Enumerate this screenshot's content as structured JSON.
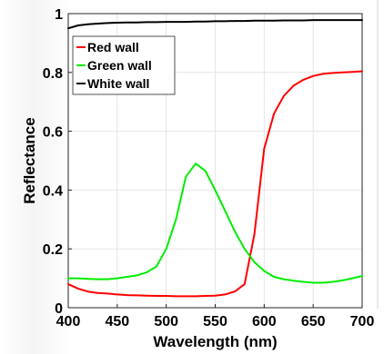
{
  "chart_data": {
    "type": "line",
    "title": "",
    "xlabel": "Wavelength (nm)",
    "ylabel": "Reflectance",
    "xlim": [
      400,
      700
    ],
    "ylim": [
      0,
      1
    ],
    "xticks": [
      400,
      450,
      500,
      550,
      600,
      650,
      700
    ],
    "yticks": [
      0,
      0.2,
      0.4,
      0.6,
      0.8,
      1
    ],
    "ytick_labels": [
      "0",
      "0.2",
      "0.4",
      "0.6",
      "0.8",
      "1"
    ],
    "grid": true,
    "legend_position": "top-left",
    "series": [
      {
        "name": "Red wall",
        "color": "#ff0000",
        "x": [
          400,
          410,
          420,
          430,
          440,
          450,
          460,
          470,
          480,
          490,
          500,
          510,
          520,
          530,
          540,
          550,
          560,
          570,
          580,
          590,
          600,
          610,
          620,
          630,
          640,
          650,
          660,
          670,
          680,
          690,
          700
        ],
        "y": [
          0.08,
          0.065,
          0.055,
          0.05,
          0.048,
          0.045,
          0.043,
          0.042,
          0.041,
          0.04,
          0.04,
          0.039,
          0.039,
          0.039,
          0.04,
          0.041,
          0.045,
          0.055,
          0.08,
          0.25,
          0.54,
          0.66,
          0.72,
          0.755,
          0.775,
          0.788,
          0.795,
          0.798,
          0.8,
          0.802,
          0.804
        ]
      },
      {
        "name": "Green wall",
        "color": "#00ee00",
        "x": [
          400,
          410,
          420,
          430,
          440,
          450,
          460,
          470,
          480,
          490,
          500,
          510,
          520,
          530,
          540,
          550,
          560,
          570,
          580,
          590,
          600,
          610,
          620,
          630,
          640,
          650,
          660,
          670,
          680,
          690,
          700
        ],
        "y": [
          0.1,
          0.1,
          0.098,
          0.097,
          0.097,
          0.1,
          0.105,
          0.11,
          0.12,
          0.14,
          0.2,
          0.3,
          0.445,
          0.49,
          0.465,
          0.4,
          0.33,
          0.26,
          0.2,
          0.155,
          0.125,
          0.105,
          0.097,
          0.092,
          0.088,
          0.085,
          0.085,
          0.088,
          0.093,
          0.1,
          0.108
        ]
      },
      {
        "name": "White wall",
        "color": "#000000",
        "x": [
          400,
          410,
          420,
          430,
          440,
          450,
          460,
          470,
          480,
          490,
          500,
          510,
          520,
          530,
          540,
          550,
          560,
          570,
          580,
          590,
          600,
          610,
          620,
          630,
          640,
          650,
          660,
          670,
          680,
          690,
          700
        ],
        "y": [
          0.95,
          0.96,
          0.964,
          0.966,
          0.968,
          0.969,
          0.97,
          0.97,
          0.971,
          0.971,
          0.972,
          0.972,
          0.972,
          0.973,
          0.973,
          0.974,
          0.974,
          0.975,
          0.975,
          0.976,
          0.976,
          0.976,
          0.977,
          0.977,
          0.977,
          0.978,
          0.978,
          0.978,
          0.978,
          0.978,
          0.978
        ]
      }
    ]
  }
}
